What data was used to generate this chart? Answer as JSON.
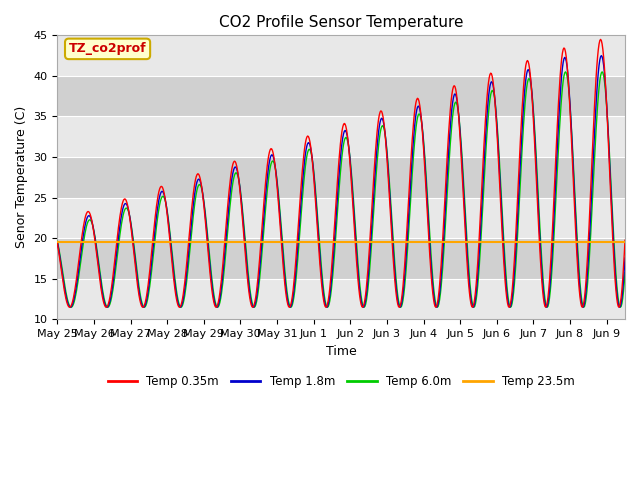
{
  "title": "CO2 Profile Sensor Temperature",
  "ylabel": "Senor Temperature (C)",
  "xlabel": "Time",
  "ylim": [
    10,
    45
  ],
  "annotation_text": "TZ_co2prof",
  "annotation_color": "#cc0000",
  "annotation_bg": "#ffffcc",
  "annotation_border": "#ccaa00",
  "horizontal_line_value": 19.5,
  "line_colors": [
    "#ff0000",
    "#0000cc",
    "#00cc00",
    "#ffa500"
  ],
  "legend_labels": [
    "Temp 0.35m",
    "Temp 1.8m",
    "Temp 6.0m",
    "Temp 23.5m"
  ],
  "background_color": "#ffffff",
  "plot_bg_light": "#e8e8e8",
  "plot_bg_dark": "#d0d0d0",
  "title_fontsize": 11,
  "axis_fontsize": 9,
  "tick_fontsize": 8,
  "figwidth": 6.4,
  "figheight": 4.8,
  "dpi": 100
}
